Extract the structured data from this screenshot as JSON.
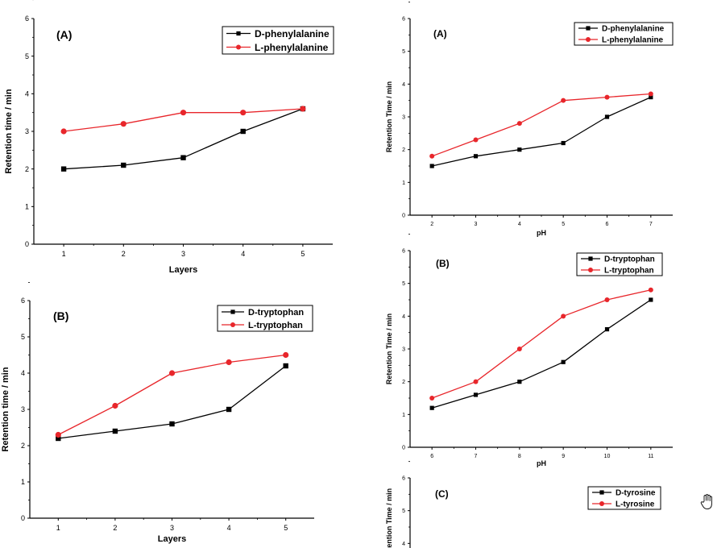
{
  "chart_data": [
    {
      "type": "line",
      "panel_label": "(A)",
      "xlabel": "Layers",
      "ylabel": "Retention time / min",
      "x": [
        1,
        2,
        3,
        4,
        5
      ],
      "xticks": [
        "1",
        "2",
        "3",
        "4",
        "5"
      ],
      "xlim": [
        0.5,
        5.5
      ],
      "ylim": [
        0,
        6
      ],
      "yticks": [
        "0",
        "1",
        "2",
        "3",
        "4",
        "5",
        "6"
      ],
      "grid": false,
      "legend_position": "top-right",
      "series": [
        {
          "name": "D-phenylalanine",
          "color": "#000000",
          "marker": "square",
          "values": [
            2.0,
            2.1,
            2.3,
            3.0,
            3.6
          ]
        },
        {
          "name": "L-phenylalanine",
          "color": "#e8262b",
          "marker": "circle",
          "values": [
            3.0,
            3.2,
            3.5,
            3.5,
            3.6
          ]
        }
      ]
    },
    {
      "type": "line",
      "panel_label": "(B)",
      "xlabel": "Layers",
      "ylabel": "Retention time / min",
      "x": [
        1,
        2,
        3,
        4,
        5
      ],
      "xticks": [
        "1",
        "2",
        "3",
        "4",
        "5"
      ],
      "xlim": [
        0.5,
        5.5
      ],
      "ylim": [
        0,
        6
      ],
      "yticks": [
        "0",
        "1",
        "2",
        "3",
        "4",
        "5",
        "6"
      ],
      "grid": false,
      "legend_position": "top-right",
      "series": [
        {
          "name": "D-tryptophan",
          "color": "#000000",
          "marker": "square",
          "values": [
            2.2,
            2.4,
            2.6,
            3.0,
            4.2
          ]
        },
        {
          "name": "L-tryptophan",
          "color": "#e8262b",
          "marker": "circle",
          "values": [
            2.3,
            3.1,
            4.0,
            4.3,
            4.5
          ]
        }
      ]
    },
    {
      "type": "line",
      "panel_label": "(A)",
      "xlabel": "pH",
      "ylabel": "Retention Time / min",
      "x": [
        2,
        3,
        4,
        5,
        6,
        7
      ],
      "xticks": [
        "2",
        "3",
        "4",
        "5",
        "6",
        "7"
      ],
      "xlim": [
        1.5,
        7.5
      ],
      "ylim": [
        0,
        6
      ],
      "yticks": [
        "0",
        "1",
        "2",
        "3",
        "4",
        "5",
        "6"
      ],
      "grid": false,
      "legend_position": "top-right",
      "series": [
        {
          "name": "D-phenylalanine",
          "color": "#000000",
          "marker": "square",
          "values": [
            1.5,
            1.8,
            2.0,
            2.2,
            3.0,
            3.6
          ]
        },
        {
          "name": "L-phenylalanine",
          "color": "#e8262b",
          "marker": "circle",
          "values": [
            1.8,
            2.3,
            2.8,
            3.5,
            3.6,
            3.7
          ]
        }
      ]
    },
    {
      "type": "line",
      "panel_label": "(B)",
      "xlabel": "pH",
      "ylabel": "Retention Time / min",
      "x": [
        6,
        7,
        8,
        9,
        10,
        11
      ],
      "xticks": [
        "6",
        "7",
        "8",
        "9",
        "10",
        "11"
      ],
      "xlim": [
        5.5,
        11.5
      ],
      "ylim": [
        0,
        6
      ],
      "yticks": [
        "0",
        "1",
        "2",
        "3",
        "4",
        "5",
        "6"
      ],
      "grid": false,
      "legend_position": "top-right",
      "series": [
        {
          "name": "D-tryptophan",
          "color": "#000000",
          "marker": "square",
          "values": [
            1.2,
            1.6,
            2.0,
            2.6,
            3.6,
            4.5
          ]
        },
        {
          "name": "L-tryptophan",
          "color": "#e8262b",
          "marker": "circle",
          "values": [
            1.5,
            2.0,
            3.0,
            4.0,
            4.5,
            4.8
          ]
        }
      ]
    },
    {
      "type": "line",
      "panel_label": "(C)",
      "xlabel": "",
      "ylabel": "Retention Time / min",
      "x": [],
      "xticks": [],
      "xlim": [
        0,
        1
      ],
      "ylim": [
        0,
        6
      ],
      "yticks": [
        "4",
        "5",
        "6"
      ],
      "grid": false,
      "legend_position": "top-right",
      "series": [
        {
          "name": "D-tyrosine",
          "color": "#000000",
          "marker": "square",
          "values": []
        },
        {
          "name": "L-tyrosine",
          "color": "#e8262b",
          "marker": "circle",
          "values": []
        }
      ]
    }
  ],
  "cursor_icon": "hand-pointer-icon"
}
